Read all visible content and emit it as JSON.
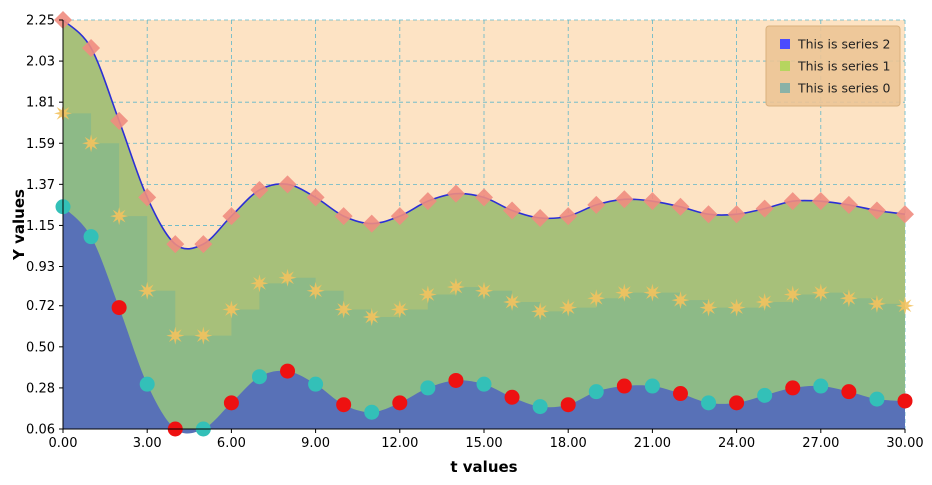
{
  "chart_data": {
    "type": "area",
    "xlabel": "t values",
    "ylabel": "Y values",
    "xlim": [
      0,
      30
    ],
    "ylim": [
      0.06,
      2.25
    ],
    "x_ticks": [
      "0.00",
      "3.00",
      "6.00",
      "9.00",
      "12.00",
      "15.00",
      "18.00",
      "21.00",
      "24.00",
      "27.00",
      "30.00"
    ],
    "y_ticks": [
      "0.06",
      "0.28",
      "0.50",
      "0.72",
      "0.93",
      "1.15",
      "1.37",
      "1.59",
      "1.81",
      "2.03",
      "2.25"
    ],
    "grid": true,
    "legend_position": "top-right",
    "colors": {
      "plot_background": "#fde3c4",
      "grid": "#5fb6c9",
      "series_2_fill": "#a7c07a",
      "series_2_line": "#2b2fd6",
      "series_2_marker": "#f08c80",
      "series_1_fill": "#88b889",
      "series_1_marker": "#f3c25e",
      "series_0_fill": "#5871b7",
      "series_0_marker_a": "#33c0b8",
      "series_0_marker_b": "#ee1111",
      "legend_bg": "#ecc496",
      "legend_swatch_2": "#4b4bff",
      "legend_swatch_1": "#b6d55f",
      "legend_swatch_0": "#8ab2a7"
    },
    "series": [
      {
        "name": "This is series 2",
        "x": [
          0,
          1,
          2,
          3,
          4,
          5,
          6,
          7,
          8,
          9,
          10,
          11,
          12,
          13,
          14,
          15,
          16,
          17,
          18,
          19,
          20,
          21,
          22,
          23,
          24,
          25,
          26,
          27,
          28,
          29,
          30
        ],
        "values": [
          2.25,
          2.1,
          1.71,
          1.3,
          1.05,
          1.05,
          1.2,
          1.34,
          1.37,
          1.3,
          1.2,
          1.16,
          1.2,
          1.28,
          1.32,
          1.3,
          1.23,
          1.19,
          1.2,
          1.26,
          1.29,
          1.28,
          1.25,
          1.21,
          1.21,
          1.24,
          1.28,
          1.28,
          1.26,
          1.23,
          1.21
        ]
      },
      {
        "name": "This is series 1",
        "x": [
          0,
          1,
          2,
          3,
          4,
          5,
          6,
          7,
          8,
          9,
          10,
          11,
          12,
          13,
          14,
          15,
          16,
          17,
          18,
          19,
          20,
          21,
          22,
          23,
          24,
          25,
          26,
          27,
          28,
          29,
          30
        ],
        "values": [
          1.75,
          1.59,
          1.2,
          0.8,
          0.56,
          0.56,
          0.7,
          0.84,
          0.87,
          0.8,
          0.7,
          0.66,
          0.7,
          0.78,
          0.82,
          0.8,
          0.74,
          0.69,
          0.71,
          0.76,
          0.79,
          0.79,
          0.75,
          0.71,
          0.71,
          0.74,
          0.78,
          0.79,
          0.76,
          0.73,
          0.72
        ]
      },
      {
        "name": "This is series 0",
        "x": [
          0,
          1,
          2,
          3,
          4,
          5,
          6,
          7,
          8,
          9,
          10,
          11,
          12,
          13,
          14,
          15,
          16,
          17,
          18,
          19,
          20,
          21,
          22,
          23,
          24,
          25,
          26,
          27,
          28,
          29,
          30
        ],
        "values": [
          1.25,
          1.09,
          0.71,
          0.3,
          0.06,
          0.06,
          0.2,
          0.34,
          0.37,
          0.3,
          0.19,
          0.15,
          0.2,
          0.28,
          0.32,
          0.3,
          0.23,
          0.18,
          0.19,
          0.26,
          0.29,
          0.29,
          0.25,
          0.2,
          0.2,
          0.24,
          0.28,
          0.29,
          0.26,
          0.22,
          0.21
        ]
      }
    ]
  }
}
